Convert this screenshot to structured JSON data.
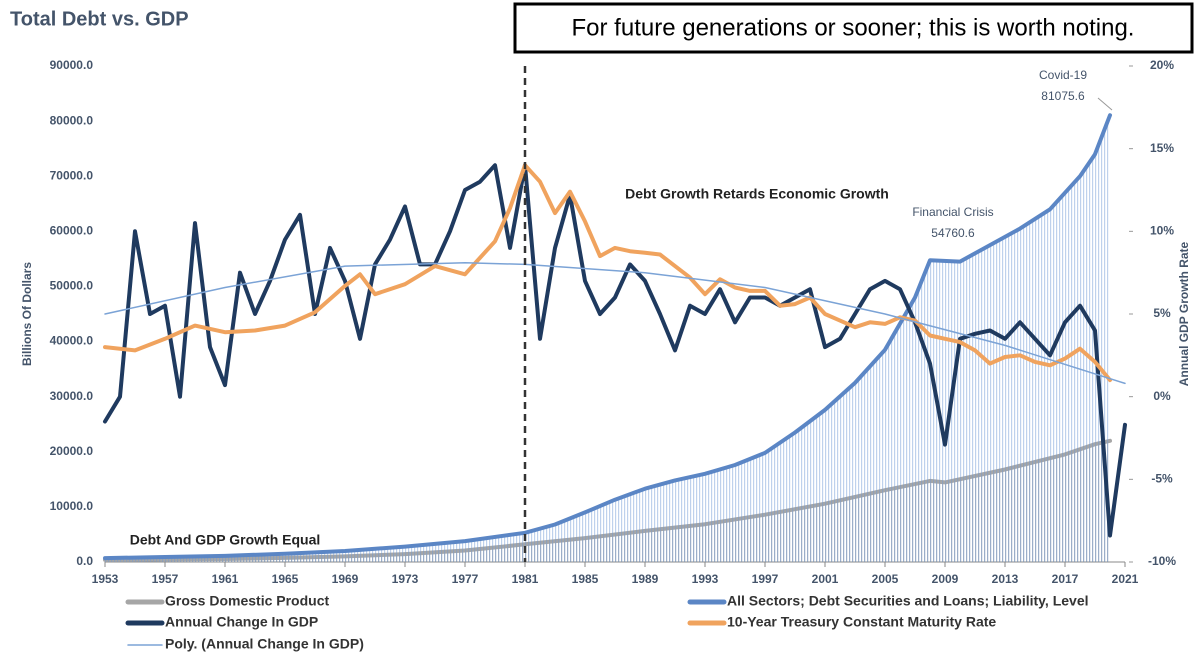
{
  "chart_data": {
    "type": "line",
    "title": "Total Debt vs. GDP",
    "note": "For future generations or sooner; this is worth noting.",
    "ylabel": "Billions Of Dollars",
    "y2label": "Annual GDP Growth Rate",
    "xlim": [
      1953,
      2021
    ],
    "xticks": [
      1953,
      1957,
      1961,
      1965,
      1969,
      1973,
      1977,
      1981,
      1985,
      1989,
      1993,
      1997,
      2001,
      2005,
      2009,
      2013,
      2017,
      2021
    ],
    "ylim": [
      0,
      90000
    ],
    "yticks": [
      {
        "value": 0,
        "label": "0.0"
      },
      {
        "value": 10000,
        "label": "10000.0"
      },
      {
        "value": 20000,
        "label": "20000.0"
      },
      {
        "value": 30000,
        "label": "30000.0"
      },
      {
        "value": 40000,
        "label": "40000.0"
      },
      {
        "value": 50000,
        "label": "50000.0"
      },
      {
        "value": 60000,
        "label": "60000.0"
      },
      {
        "value": 70000,
        "label": "70000.0"
      },
      {
        "value": 80000,
        "label": "80000.0"
      },
      {
        "value": 90000,
        "label": "90000.0"
      }
    ],
    "y2lim": [
      -10,
      20
    ],
    "y2ticks": [
      {
        "value": -10,
        "label": "-10%"
      },
      {
        "value": -5,
        "label": "-5%"
      },
      {
        "value": 0,
        "label": "0%"
      },
      {
        "value": 5,
        "label": "5%"
      },
      {
        "value": 10,
        "label": "10%"
      },
      {
        "value": 15,
        "label": "15%"
      },
      {
        "value": 20,
        "label": "20%"
      }
    ],
    "vline_x": 1981,
    "series": [
      {
        "name": "Gross Domestic Product",
        "color": "#a6a6a6",
        "fill": "area",
        "x": [
          1953,
          1957,
          1961,
          1965,
          1969,
          1973,
          1977,
          1981,
          1985,
          1989,
          1993,
          1997,
          2001,
          2005,
          2008,
          2009,
          2013,
          2017,
          2019,
          2020
        ],
        "values": [
          389,
          475,
          545,
          743,
          1017,
          1425,
          2086,
          3207,
          4339,
          5642,
          6859,
          8577,
          10582,
          13037,
          14713,
          14448,
          16784,
          19519,
          21380,
          22000
        ]
      },
      {
        "name": "All Sectors; Debt Securities and Loans; Liability, Level",
        "color": "#5b86c5",
        "fill": "area",
        "x": [
          1953,
          1957,
          1961,
          1965,
          1969,
          1973,
          1977,
          1981,
          1983,
          1985,
          1987,
          1989,
          1991,
          1993,
          1995,
          1997,
          1999,
          2001,
          2003,
          2005,
          2007,
          2008,
          2010,
          2012,
          2014,
          2016,
          2018,
          2019,
          2020
        ],
        "values": [
          700,
          900,
          1100,
          1500,
          2000,
          2800,
          3800,
          5300,
          6800,
          9000,
          11300,
          13300,
          14800,
          16000,
          17600,
          19800,
          23500,
          27600,
          32500,
          38500,
          48000,
          54760.6,
          54500,
          57500,
          60500,
          64000,
          70000,
          74000,
          81075.6
        ]
      },
      {
        "name": "Annual Change In GDP",
        "color": "#1f3a5f",
        "axis": "y2",
        "x": [
          1953,
          1954,
          1955,
          1956,
          1957,
          1958,
          1959,
          1960,
          1961,
          1962,
          1963,
          1964,
          1965,
          1966,
          1967,
          1968,
          1969,
          1970,
          1971,
          1972,
          1973,
          1974,
          1975,
          1976,
          1977,
          1978,
          1979,
          1980,
          1981,
          1982,
          1983,
          1984,
          1985,
          1986,
          1987,
          1988,
          1989,
          1990,
          1991,
          1992,
          1993,
          1994,
          1995,
          1996,
          1997,
          1998,
          1999,
          2000,
          2001,
          2002,
          2003,
          2004,
          2005,
          2006,
          2007,
          2008,
          2009,
          2010,
          2011,
          2012,
          2013,
          2014,
          2015,
          2016,
          2017,
          2018,
          2019,
          2020,
          2021
        ],
        "values": [
          -1.5,
          0,
          10,
          5,
          5.5,
          0,
          10.5,
          3,
          0.7,
          7.5,
          5,
          7,
          9.5,
          11,
          5,
          9,
          7,
          3.5,
          8,
          9.5,
          11.5,
          8,
          8,
          10,
          12.5,
          13,
          14,
          9,
          14,
          3.5,
          9,
          12.2,
          7,
          5,
          6,
          8,
          7,
          5,
          2.8,
          5.5,
          5,
          6.5,
          4.5,
          6,
          6,
          5.5,
          6,
          6.5,
          3,
          3.5,
          5,
          6.5,
          7,
          6.5,
          4.5,
          2,
          -2.9,
          3.5,
          3.8,
          4,
          3.5,
          4.5,
          3.5,
          2.5,
          4.5,
          5.5,
          4,
          -8.4,
          -1.7
        ]
      },
      {
        "name": "10-Year Treasury Constant Maturity Rate",
        "color": "#f0a35e",
        "axis": "y2",
        "x": [
          1953,
          1955,
          1957,
          1959,
          1961,
          1963,
          1965,
          1967,
          1969,
          1970,
          1971,
          1973,
          1975,
          1977,
          1979,
          1980,
          1981,
          1982,
          1983,
          1984,
          1985,
          1986,
          1987,
          1988,
          1989,
          1990,
          1991,
          1992,
          1993,
          1994,
          1995,
          1996,
          1997,
          1998,
          1999,
          2000,
          2001,
          2002,
          2003,
          2004,
          2005,
          2006,
          2007,
          2008,
          2009,
          2010,
          2011,
          2012,
          2013,
          2014,
          2015,
          2016,
          2017,
          2018,
          2019,
          2020
        ],
        "values": [
          3.0,
          2.8,
          3.5,
          4.3,
          3.9,
          4,
          4.3,
          5.1,
          6.7,
          7.4,
          6.2,
          6.8,
          7.9,
          7.4,
          9.4,
          11.4,
          14,
          13,
          11.1,
          12.4,
          10.6,
          8.5,
          9,
          8.8,
          8.7,
          8.6,
          7.9,
          7.2,
          6.2,
          7.1,
          6.6,
          6.4,
          6.4,
          5.5,
          5.6,
          6.0,
          5.0,
          4.6,
          4.2,
          4.5,
          4.4,
          4.8,
          4.6,
          3.7,
          3.5,
          3.3,
          2.8,
          2.0,
          2.4,
          2.5,
          2.1,
          1.9,
          2.3,
          2.9,
          2.1,
          1.0
        ]
      },
      {
        "name": "Poly. (Annual Change In GDP)",
        "color": "#7ba3d6",
        "axis": "y2",
        "thin": true,
        "x": [
          1953,
          1961,
          1969,
          1977,
          1981,
          1989,
          1997,
          2005,
          2013,
          2021
        ],
        "values": [
          5.0,
          6.6,
          7.9,
          8.1,
          8.0,
          7.5,
          6.6,
          5.0,
          3.1,
          0.8
        ]
      }
    ],
    "annotations": [
      "Covid-19",
      "81075.6",
      "Financial Crisis",
      "54760.6",
      "Debt Growth Retards Economic Growth",
      "Debt And GDP Growth Equal"
    ]
  }
}
